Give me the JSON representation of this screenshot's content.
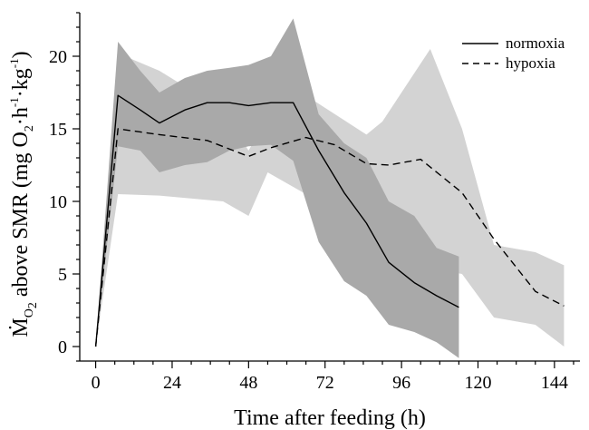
{
  "chart_data": {
    "type": "line",
    "xlabel": "Time after feeding (h)",
    "ylabel": {
      "parts": [
        {
          "text": "Ṁ",
          "style": "normal"
        },
        {
          "text": "O",
          "style": "sub"
        },
        {
          "text": "2",
          "style": "subsub"
        },
        {
          "text": " above SMR (mg O",
          "style": "normal"
        },
        {
          "text": "2",
          "style": "sub"
        },
        {
          "text": "·h",
          "style": "normal"
        },
        {
          "text": "-1",
          "style": "sup"
        },
        {
          "text": "·kg",
          "style": "normal"
        },
        {
          "text": "-1",
          "style": "sup"
        },
        {
          "text": ")",
          "style": "normal"
        }
      ]
    },
    "xlim": [
      -5,
      152
    ],
    "ylim": [
      -1,
      23
    ],
    "xticks": [
      0,
      24,
      48,
      72,
      96,
      120,
      144
    ],
    "xtick_labels": [
      "0",
      "24",
      "48",
      "72",
      "96",
      "120",
      "144"
    ],
    "yticks": [
      0,
      5,
      10,
      15,
      20
    ],
    "ytick_labels": [
      "0",
      "5",
      "10",
      "15",
      "20"
    ],
    "legend": {
      "position": "top-right",
      "entries": [
        {
          "label": "normoxia",
          "dash": "solid"
        },
        {
          "label": "hypoxia",
          "dash": "dashed"
        }
      ]
    },
    "bands": [
      {
        "series": "hypoxia",
        "color": "#d3d3d3",
        "x": [
          0,
          7,
          20,
          40,
          48,
          54,
          66,
          85,
          90,
          96,
          105,
          115,
          125,
          138,
          147
        ],
        "upper": [
          0,
          20.2,
          19.0,
          16.3,
          13.5,
          15.8,
          17.3,
          14.6,
          15.5,
          17.5,
          20.5,
          15.0,
          7.0,
          6.5,
          5.6
        ],
        "lower": [
          0,
          10.5,
          10.4,
          10.0,
          9.0,
          12.0,
          10.5,
          6.5,
          6.0,
          5.5,
          5.4,
          5.0,
          2.0,
          1.5,
          0.0
        ]
      },
      {
        "series": "normoxia",
        "color": "#a9a9a9",
        "x": [
          0,
          7,
          14,
          20,
          28,
          35,
          42,
          48,
          55,
          62,
          70,
          78,
          85,
          92,
          100,
          107,
          114
        ],
        "upper": [
          0,
          21.0,
          19.0,
          17.5,
          18.5,
          19.0,
          19.2,
          19.4,
          20.0,
          22.6,
          16.0,
          14.0,
          13.0,
          10.0,
          9.0,
          6.8,
          6.2
        ],
        "lower": [
          0,
          13.8,
          13.5,
          12.0,
          12.5,
          12.7,
          13.5,
          13.8,
          13.9,
          12.8,
          7.2,
          4.5,
          3.5,
          1.5,
          1.0,
          0.3,
          -0.8
        ]
      }
    ],
    "series": [
      {
        "name": "normoxia",
        "dash": "solid",
        "x": [
          0,
          7,
          14,
          20,
          28,
          35,
          42,
          48,
          55,
          62,
          70,
          78,
          85,
          92,
          100,
          107,
          114
        ],
        "y": [
          0,
          17.3,
          16.3,
          15.4,
          16.3,
          16.8,
          16.8,
          16.6,
          16.8,
          16.8,
          13.5,
          10.6,
          8.5,
          5.8,
          4.4,
          3.5,
          2.7
        ]
      },
      {
        "name": "hypoxia",
        "dash": "dashed",
        "x": [
          0,
          7,
          20,
          35,
          48,
          55,
          66,
          75,
          85,
          92,
          102,
          115,
          125,
          138,
          147
        ],
        "y": [
          0,
          15.0,
          14.6,
          14.2,
          13.1,
          13.7,
          14.4,
          13.9,
          12.6,
          12.5,
          12.9,
          10.6,
          7.4,
          3.8,
          2.8
        ]
      }
    ]
  }
}
